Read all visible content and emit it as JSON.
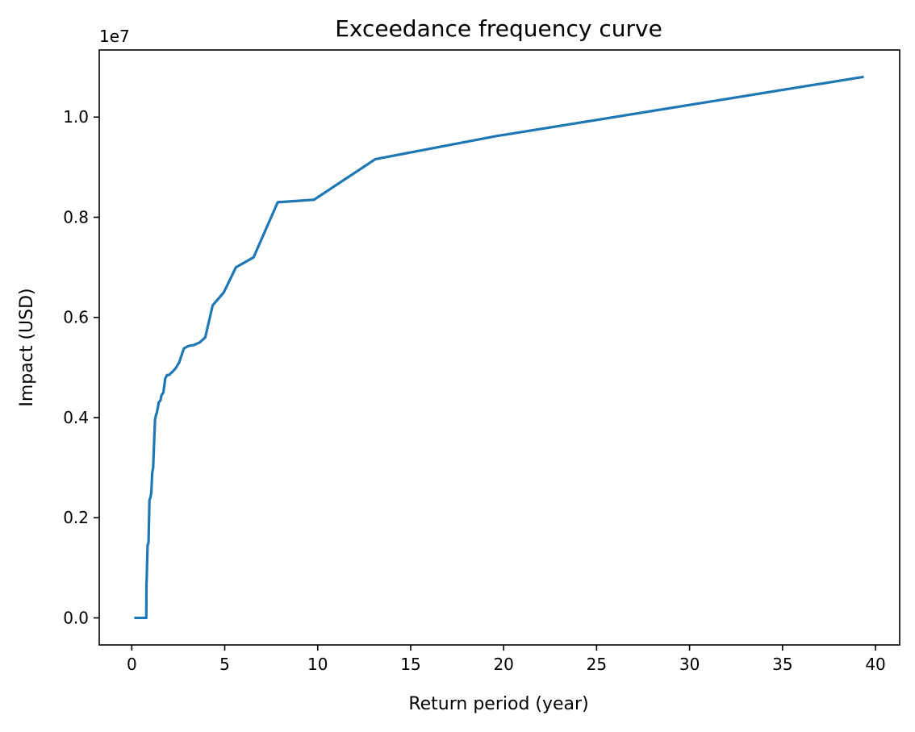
{
  "chart_data": {
    "type": "line",
    "title": "Exceedance frequency curve",
    "xlabel": "Return period (year)",
    "ylabel": "Impact (USD)",
    "y_offset_label": "1e7",
    "xlim": [
      -1.75,
      41.3
    ],
    "ylim": [
      -0.054,
      1.134
    ],
    "y_unit_multiplier": 10000000,
    "x_ticks": [
      0,
      5,
      10,
      15,
      20,
      25,
      30,
      35,
      40
    ],
    "x_tick_labels": [
      "0",
      "5",
      "10",
      "15",
      "20",
      "25",
      "30",
      "35",
      "40"
    ],
    "y_ticks": [
      0.0,
      0.2,
      0.4,
      0.6,
      0.8,
      1.0
    ],
    "y_tick_labels": [
      "0.0",
      "0.2",
      "0.4",
      "0.6",
      "0.8",
      "1.0"
    ],
    "grid": false,
    "colors": {
      "line": "#1f77b4"
    },
    "series": [
      {
        "x": [
          0.2,
          0.78,
          0.79,
          0.8,
          0.85,
          0.9,
          0.95,
          1.0,
          1.05,
          1.1,
          1.15,
          1.2,
          1.25,
          1.3,
          1.35,
          1.45,
          1.55,
          1.6,
          1.7,
          1.8,
          1.9,
          2.0,
          2.2,
          2.35,
          2.55,
          2.8,
          3.05,
          3.35,
          3.65,
          3.95,
          4.35,
          4.95,
          5.6,
          6.55,
          7.85,
          9.8,
          13.1,
          19.6,
          39.3
        ],
        "y": [
          0.0,
          0.0,
          0.07,
          0.075,
          0.145,
          0.15,
          0.235,
          0.24,
          0.25,
          0.29,
          0.3,
          0.35,
          0.395,
          0.405,
          0.41,
          0.43,
          0.435,
          0.445,
          0.45,
          0.478,
          0.485,
          0.485,
          0.492,
          0.498,
          0.51,
          0.538,
          0.543,
          0.545,
          0.55,
          0.56,
          0.624,
          0.65,
          0.7,
          0.72,
          0.83,
          0.835,
          0.916,
          0.962,
          1.08
        ]
      }
    ]
  }
}
